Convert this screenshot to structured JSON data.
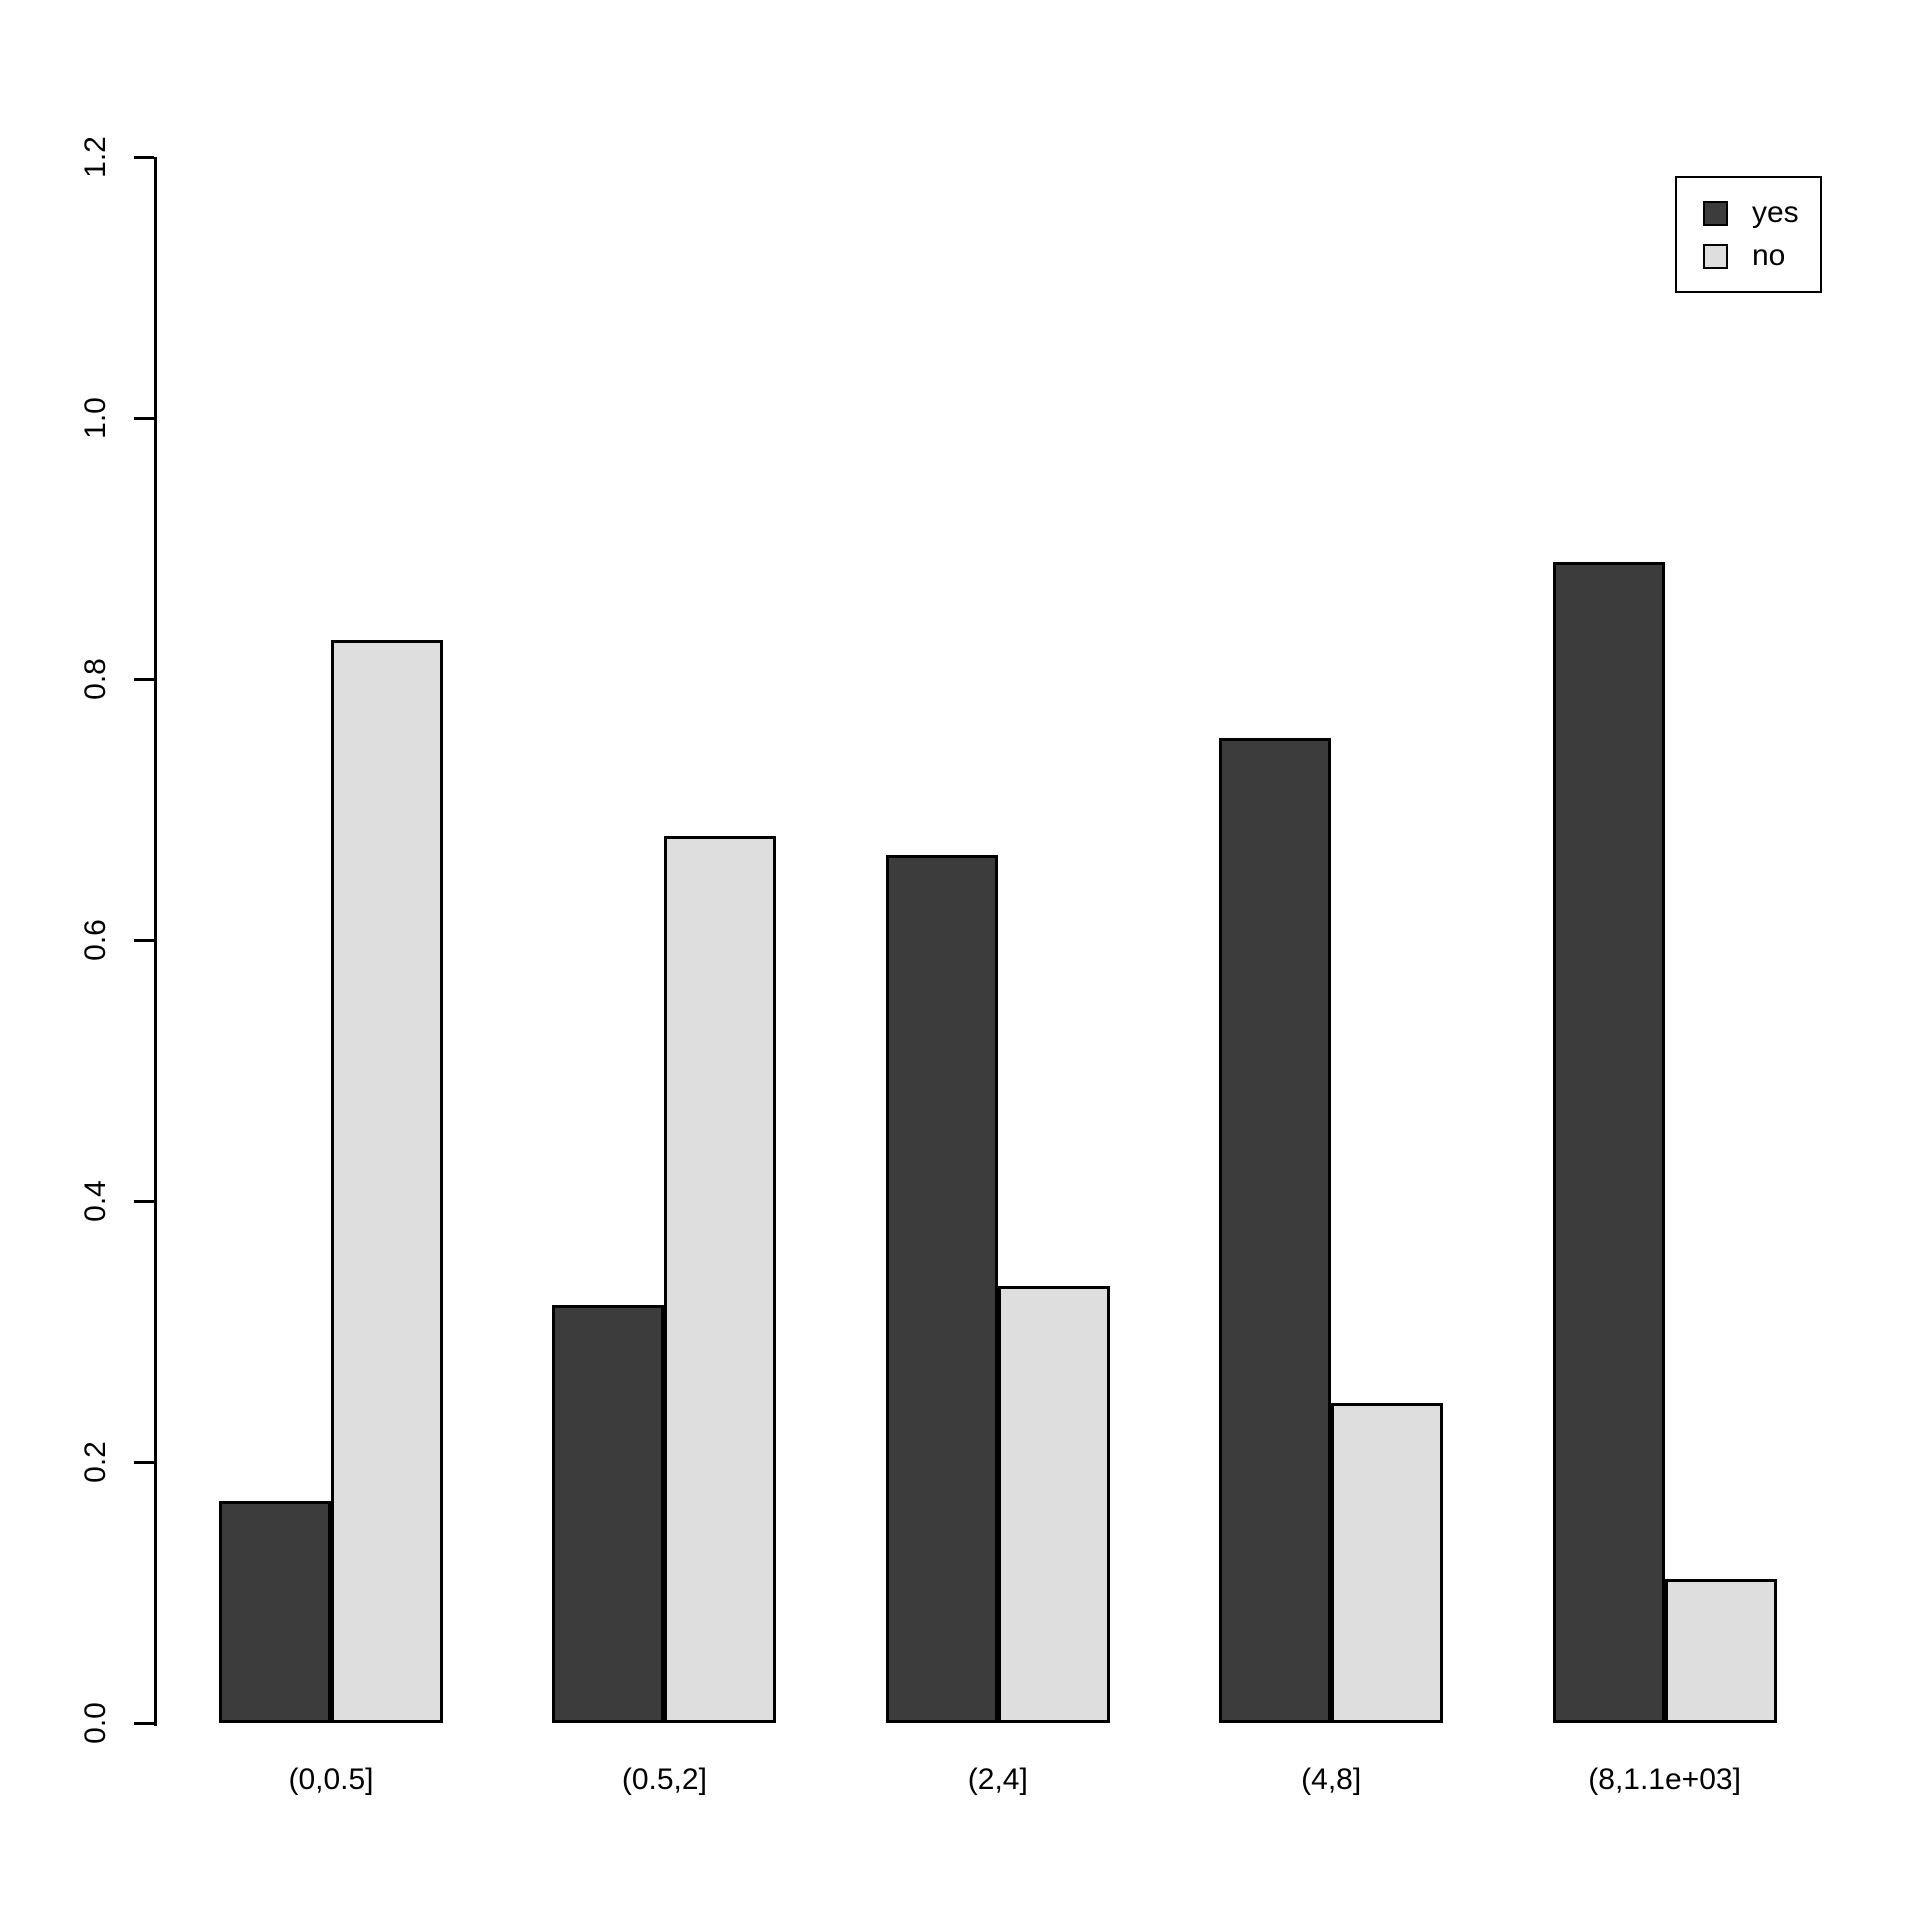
{
  "chart_data": {
    "type": "bar",
    "title": "",
    "xlabel": "",
    "ylabel": "",
    "categories": [
      "(0,0.5]",
      "(0.5,2]",
      "(2,4]",
      "(4,8]",
      "(8,1.1e+03]"
    ],
    "series": [
      {
        "name": "yes",
        "color": "#3C3C3C",
        "values": [
          0.17,
          0.32,
          0.665,
          0.755,
          0.89
        ]
      },
      {
        "name": "no",
        "color": "#DEDEDE",
        "values": [
          0.83,
          0.68,
          0.335,
          0.245,
          0.11
        ]
      }
    ],
    "ylim": [
      0,
      1.2
    ],
    "yticks": [
      "0.0",
      "0.2",
      "0.4",
      "0.6",
      "0.8",
      "1.0",
      "1.2"
    ],
    "grid": false,
    "legend": {
      "position": "top-right",
      "entries": [
        {
          "label": "yes",
          "color": "#3C3C3C"
        },
        {
          "label": "no",
          "color": "#DEDEDE"
        }
      ]
    },
    "bar_border_color": "#000000",
    "axis_color": "#000000"
  }
}
